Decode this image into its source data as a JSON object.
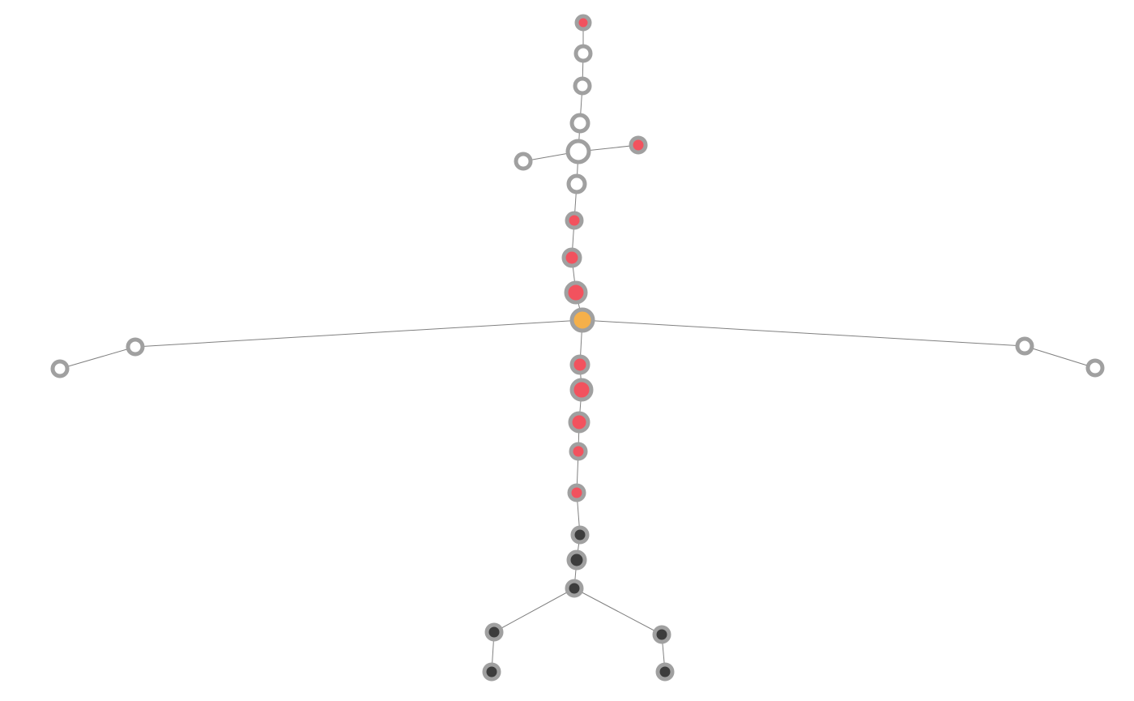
{
  "colors": {
    "background": "#ffffff",
    "edge": "#808080",
    "node_outline": "#a0a0a0",
    "hollow": "#ffffff",
    "red": "#f2525e",
    "orange": "#f5b04a",
    "dark": "#3d3d3d"
  },
  "nodes": [
    {
      "id": "n0",
      "fill": "red"
    },
    {
      "id": "n1",
      "fill": "hollow"
    },
    {
      "id": "n2",
      "fill": "hollow"
    },
    {
      "id": "n3",
      "fill": "hollow"
    },
    {
      "id": "n4",
      "fill": "hollow"
    },
    {
      "id": "n5",
      "fill": "red"
    },
    {
      "id": "n6",
      "fill": "hollow"
    },
    {
      "id": "n7",
      "fill": "hollow"
    },
    {
      "id": "n8",
      "fill": "red"
    },
    {
      "id": "n9",
      "fill": "red"
    },
    {
      "id": "n10",
      "fill": "red"
    },
    {
      "id": "n11",
      "fill": "orange"
    },
    {
      "id": "n12",
      "fill": "hollow"
    },
    {
      "id": "n13",
      "fill": "hollow"
    },
    {
      "id": "n14",
      "fill": "hollow"
    },
    {
      "id": "n15",
      "fill": "hollow"
    },
    {
      "id": "n16",
      "fill": "red"
    },
    {
      "id": "n17",
      "fill": "red"
    },
    {
      "id": "n18",
      "fill": "red"
    },
    {
      "id": "n19",
      "fill": "red"
    },
    {
      "id": "n20",
      "fill": "red"
    },
    {
      "id": "n21",
      "fill": "dark"
    },
    {
      "id": "n22",
      "fill": "dark"
    },
    {
      "id": "n23",
      "fill": "dark"
    },
    {
      "id": "n24",
      "fill": "dark"
    },
    {
      "id": "n25",
      "fill": "dark"
    },
    {
      "id": "n26",
      "fill": "dark"
    },
    {
      "id": "n27",
      "fill": "dark"
    }
  ],
  "edges": [
    [
      "n0",
      "n1"
    ],
    [
      "n1",
      "n2"
    ],
    [
      "n2",
      "n3"
    ],
    [
      "n3",
      "n4"
    ],
    [
      "n4",
      "n5"
    ],
    [
      "n4",
      "n6"
    ],
    [
      "n4",
      "n7"
    ],
    [
      "n7",
      "n8"
    ],
    [
      "n8",
      "n9"
    ],
    [
      "n9",
      "n10"
    ],
    [
      "n10",
      "n11"
    ],
    [
      "n11",
      "n12"
    ],
    [
      "n12",
      "n13"
    ],
    [
      "n11",
      "n14"
    ],
    [
      "n14",
      "n15"
    ],
    [
      "n11",
      "n16"
    ],
    [
      "n16",
      "n17"
    ],
    [
      "n17",
      "n18"
    ],
    [
      "n18",
      "n19"
    ],
    [
      "n19",
      "n20"
    ],
    [
      "n20",
      "n21"
    ],
    [
      "n21",
      "n22"
    ],
    [
      "n22",
      "n23"
    ],
    [
      "n23",
      "n24"
    ],
    [
      "n24",
      "n25"
    ],
    [
      "n23",
      "n26"
    ],
    [
      "n26",
      "n27"
    ]
  ]
}
